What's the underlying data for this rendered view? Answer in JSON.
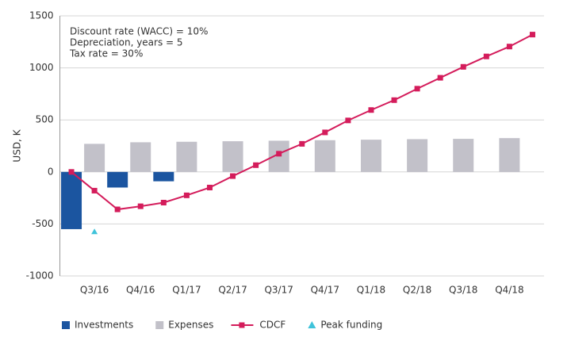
{
  "chart_data": {
    "type": "bar",
    "ylabel": "USD, K",
    "annotations": [
      "Discount rate (WACC) = 10%",
      "Depreciation, years = 5",
      "Tax rate = 30%"
    ],
    "categories": [
      null,
      "Q3/16",
      null,
      "Q4/16",
      null,
      "Q1/17",
      null,
      "Q2/17",
      null,
      "Q3/17",
      null,
      "Q4/17",
      null,
      "Q1/18",
      null,
      "Q2/18",
      null,
      "Q3/18",
      null,
      "Q4/18",
      null
    ],
    "series": [
      {
        "name": "Investments",
        "kind": "bar",
        "color": "#1b55a0",
        "values": [
          -550,
          null,
          -150,
          null,
          -90,
          null,
          null,
          null,
          null,
          null,
          null,
          null,
          null,
          null,
          null,
          null,
          null,
          null,
          null,
          null,
          null
        ]
      },
      {
        "name": "Expenses",
        "kind": "bar",
        "color": "#c2c1c9",
        "values": [
          null,
          270,
          null,
          285,
          null,
          290,
          null,
          295,
          null,
          300,
          null,
          305,
          null,
          310,
          null,
          315,
          null,
          318,
          null,
          325,
          null
        ]
      },
      {
        "name": "CDCF",
        "kind": "line",
        "color": "#d41c5b",
        "values": [
          0,
          -180,
          -360,
          -330,
          -295,
          -225,
          -150,
          -40,
          65,
          175,
          270,
          380,
          495,
          595,
          690,
          800,
          905,
          1010,
          1110,
          1205,
          1320
        ]
      },
      {
        "name": "Peak funding",
        "kind": "marker",
        "color": "#3fc3da",
        "values": [
          null,
          -575,
          null,
          null,
          null,
          null,
          null,
          null,
          null,
          null,
          null,
          null,
          null,
          null,
          null,
          null,
          null,
          null,
          null,
          null,
          null
        ]
      }
    ],
    "ylim": [
      -1000,
      1500
    ],
    "yticks": [
      -1000,
      -500,
      0,
      500,
      1000,
      1500
    ],
    "grid": true,
    "legend": "bottom"
  }
}
